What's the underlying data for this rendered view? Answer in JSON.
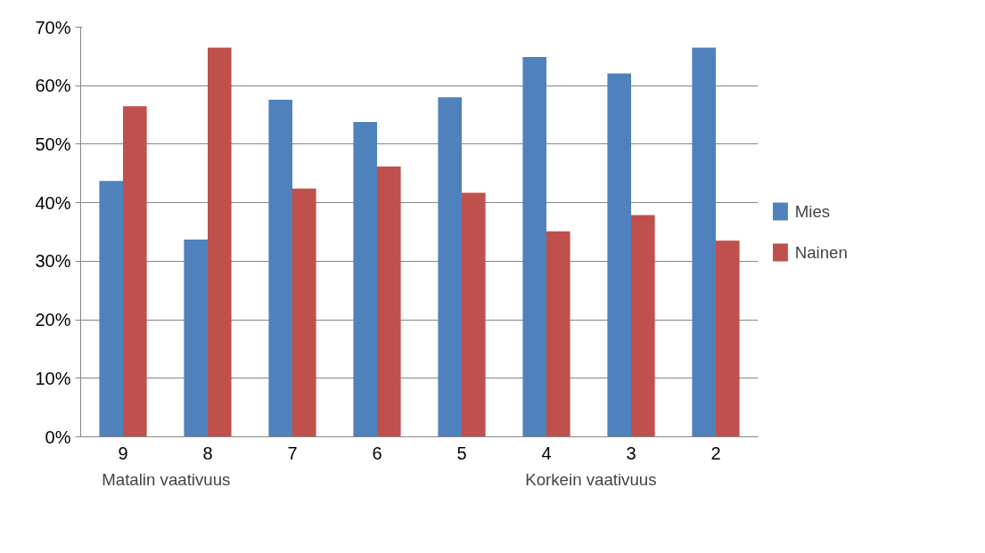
{
  "chart_data": {
    "type": "bar",
    "categories": [
      "9",
      "8",
      "7",
      "6",
      "5",
      "4",
      "3",
      "2"
    ],
    "series": [
      {
        "name": "Mies",
        "color": "#4f81bd",
        "values": [
          43.7,
          33.7,
          57.6,
          53.8,
          58.0,
          64.9,
          62.1,
          66.5
        ]
      },
      {
        "name": "Nainen",
        "color": "#c0504d",
        "values": [
          56.5,
          66.5,
          42.4,
          46.2,
          41.7,
          35.1,
          37.9,
          33.5
        ]
      }
    ],
    "ylim": [
      0,
      70
    ],
    "yticks": [
      {
        "value": 0,
        "label": "0%"
      },
      {
        "value": 10,
        "label": "10%"
      },
      {
        "value": 20,
        "label": "20%"
      },
      {
        "value": 30,
        "label": "30%"
      },
      {
        "value": 40,
        "label": "40%"
      },
      {
        "value": 50,
        "label": "50%"
      },
      {
        "value": 60,
        "label": "60%"
      },
      {
        "value": 70,
        "label": "70%"
      }
    ],
    "grid": "y",
    "legend": "right",
    "annotations": [
      "Matalin vaativuus",
      "Korkein  vaativuus"
    ]
  }
}
